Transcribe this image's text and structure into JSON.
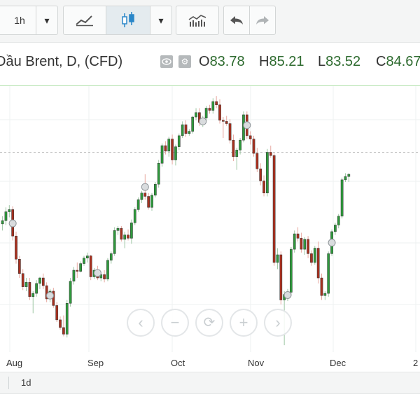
{
  "toolbar": {
    "interval_label": "1h",
    "dropdown_glyph": "▾",
    "icons": [
      "line-chart-icon",
      "candlestick-icon",
      "indicators-icon",
      "undo-icon",
      "redo-icon"
    ]
  },
  "header": {
    "symbol": "Dầu Brent, D, (CFD)",
    "ohlc": [
      {
        "key": "O",
        "value": "83.78"
      },
      {
        "key": "H",
        "value": "85.21"
      },
      {
        "key": "L",
        "value": "83.52"
      },
      {
        "key": "C",
        "value": "84.67"
      }
    ]
  },
  "colors": {
    "up": "#2e9a3c",
    "down": "#a8301f",
    "grid": "#eef0f1",
    "price_line": "#b8b8b8",
    "ohlc_value": "#2e6b2f"
  },
  "chart_data": {
    "type": "candlestick",
    "title": "",
    "x_labels": [
      "Aug",
      "Sep",
      "Oct",
      "Nov",
      "Dec",
      "2"
    ],
    "y_range": [
      55,
      79
    ],
    "candles": [
      [
        66.5,
        67.2,
        65.9,
        66.8
      ],
      [
        66.8,
        68.0,
        66.4,
        67.6
      ],
      [
        67.6,
        68.2,
        67.1,
        67.8
      ],
      [
        67.8,
        68.1,
        65.0,
        65.4
      ],
      [
        65.4,
        65.8,
        62.9,
        63.3
      ],
      [
        63.3,
        63.6,
        61.6,
        62.0
      ],
      [
        62.0,
        62.4,
        60.5,
        60.8
      ],
      [
        60.8,
        61.6,
        60.4,
        61.2
      ],
      [
        61.2,
        61.6,
        59.6,
        59.9
      ],
      [
        59.9,
        60.4,
        58.4,
        60.2
      ],
      [
        60.2,
        61.4,
        59.9,
        61.1
      ],
      [
        61.1,
        61.7,
        60.6,
        61.6
      ],
      [
        61.6,
        62.0,
        60.6,
        60.9
      ],
      [
        60.9,
        61.2,
        59.4,
        59.7
      ],
      [
        59.7,
        60.6,
        59.4,
        60.4
      ],
      [
        60.4,
        60.7,
        58.9,
        59.1
      ],
      [
        59.1,
        59.4,
        57.6,
        57.8
      ],
      [
        57.8,
        58.1,
        56.9,
        57.1
      ],
      [
        57.1,
        58.2,
        56.3,
        56.5
      ],
      [
        56.5,
        59.6,
        56.2,
        59.3
      ],
      [
        59.3,
        61.6,
        59.0,
        61.3
      ],
      [
        61.3,
        62.6,
        61.0,
        62.3
      ],
      [
        62.3,
        63.0,
        61.6,
        62.2
      ],
      [
        62.2,
        63.1,
        62.1,
        62.9
      ],
      [
        62.9,
        63.6,
        62.7,
        63.4
      ],
      [
        63.4,
        63.9,
        63.0,
        63.6
      ],
      [
        63.6,
        63.7,
        61.4,
        61.7
      ],
      [
        61.7,
        62.5,
        61.5,
        62.3
      ],
      [
        62.3,
        62.7,
        61.4,
        61.6
      ],
      [
        61.6,
        62.0,
        61.3,
        61.9
      ],
      [
        61.9,
        62.3,
        61.2,
        61.5
      ],
      [
        61.5,
        63.4,
        61.3,
        63.2
      ],
      [
        63.2,
        64.0,
        62.9,
        63.8
      ],
      [
        63.8,
        66.2,
        63.6,
        65.9
      ],
      [
        65.9,
        66.3,
        65.5,
        66.1
      ],
      [
        66.1,
        66.3,
        64.9,
        65.1
      ],
      [
        65.1,
        65.8,
        64.3,
        65.5
      ],
      [
        65.5,
        66.0,
        65.0,
        65.2
      ],
      [
        65.2,
        66.9,
        64.7,
        66.6
      ],
      [
        66.6,
        68.0,
        66.4,
        67.8
      ],
      [
        67.8,
        68.9,
        67.6,
        68.7
      ],
      [
        68.7,
        69.5,
        68.4,
        69.3
      ],
      [
        69.3,
        71.0,
        68.7,
        69.0
      ],
      [
        69.0,
        69.3,
        67.8,
        68.0
      ],
      [
        68.0,
        69.3,
        67.7,
        69.1
      ],
      [
        69.1,
        70.3,
        68.9,
        70.1
      ],
      [
        70.1,
        72.3,
        69.8,
        72.0
      ],
      [
        72.0,
        73.8,
        71.7,
        73.6
      ],
      [
        73.6,
        74.0,
        72.8,
        73.1
      ],
      [
        73.1,
        74.4,
        72.6,
        74.2
      ],
      [
        74.2,
        74.6,
        71.9,
        72.3
      ],
      [
        72.3,
        73.7,
        71.8,
        73.5
      ],
      [
        73.5,
        74.7,
        73.2,
        74.5
      ],
      [
        74.5,
        75.8,
        74.3,
        75.5
      ],
      [
        75.5,
        75.9,
        74.4,
        74.7
      ],
      [
        74.7,
        75.1,
        74.5,
        74.9
      ],
      [
        74.9,
        76.3,
        74.7,
        76.2
      ],
      [
        76.2,
        77.0,
        75.9,
        76.6
      ],
      [
        76.6,
        77.0,
        75.4,
        75.7
      ],
      [
        75.7,
        76.3,
        75.3,
        76.1
      ],
      [
        76.1,
        77.2,
        75.8,
        77.0
      ],
      [
        77.0,
        77.3,
        76.5,
        76.8
      ],
      [
        76.8,
        77.9,
        76.5,
        77.6
      ],
      [
        77.6,
        78.1,
        77.0,
        77.3
      ],
      [
        77.3,
        77.8,
        75.6,
        75.9
      ],
      [
        75.9,
        76.2,
        74.3,
        75.8
      ],
      [
        75.8,
        76.3,
        75.4,
        75.6
      ],
      [
        75.6,
        76.0,
        73.8,
        74.1
      ],
      [
        74.1,
        74.6,
        72.2,
        72.6
      ],
      [
        72.6,
        73.4,
        71.4,
        73.2
      ],
      [
        73.2,
        74.3,
        72.8,
        74.1
      ],
      [
        74.1,
        76.7,
        73.9,
        76.4
      ],
      [
        76.4,
        76.7,
        74.2,
        74.5
      ],
      [
        74.5,
        74.9,
        73.7,
        74.2
      ],
      [
        74.2,
        74.5,
        72.6,
        72.9
      ],
      [
        72.9,
        73.4,
        71.2,
        71.5
      ],
      [
        71.5,
        72.0,
        70.0,
        70.4
      ],
      [
        70.4,
        70.9,
        69.0,
        69.3
      ],
      [
        69.3,
        73.3,
        69.0,
        73.0
      ],
      [
        73.0,
        73.6,
        72.5,
        72.7
      ],
      [
        72.7,
        72.9,
        62.7,
        63.0
      ],
      [
        63.0,
        64.3,
        62.4,
        63.7
      ],
      [
        63.7,
        64.0,
        59.2,
        59.6
      ],
      [
        59.6,
        60.4,
        55.5,
        60.1
      ],
      [
        60.1,
        60.6,
        59.5,
        60.3
      ],
      [
        60.3,
        64.4,
        60.1,
        64.2
      ],
      [
        64.2,
        65.9,
        63.9,
        65.6
      ],
      [
        65.6,
        66.2,
        64.9,
        65.2
      ],
      [
        65.2,
        65.7,
        63.9,
        64.2
      ],
      [
        64.2,
        65.3,
        63.7,
        65.1
      ],
      [
        65.1,
        65.4,
        63.4,
        63.8
      ],
      [
        63.8,
        64.1,
        62.7,
        63.0
      ],
      [
        63.0,
        64.5,
        62.8,
        64.3
      ],
      [
        64.3,
        64.9,
        61.1,
        61.6
      ],
      [
        61.6,
        62.0,
        59.6,
        60.0
      ],
      [
        60.0,
        60.4,
        59.6,
        60.2
      ],
      [
        60.2,
        64.0,
        59.9,
        63.8
      ],
      [
        63.8,
        66.0,
        63.6,
        65.8
      ],
      [
        65.8,
        66.6,
        65.5,
        66.4
      ],
      [
        66.4,
        67.4,
        66.1,
        67.2
      ],
      [
        67.2,
        70.7,
        67.0,
        70.5
      ],
      [
        70.5,
        71.1,
        70.3,
        70.8
      ],
      [
        70.8,
        71.1,
        70.3,
        71.0
      ]
    ],
    "markers": [
      3,
      14,
      28,
      42,
      59,
      72,
      84,
      97,
      112,
      123
    ],
    "price_line": 73.0,
    "grid": true
  },
  "nav": {
    "prev": "‹",
    "zoom_out": "−",
    "reset": "⟳",
    "zoom_in": "+",
    "next": "›"
  },
  "xaxis": {
    "labels": [
      "Aug",
      "Sep",
      "Oct",
      "Nov",
      "Dec",
      "2"
    ]
  },
  "periods": {
    "selected": "1d"
  }
}
